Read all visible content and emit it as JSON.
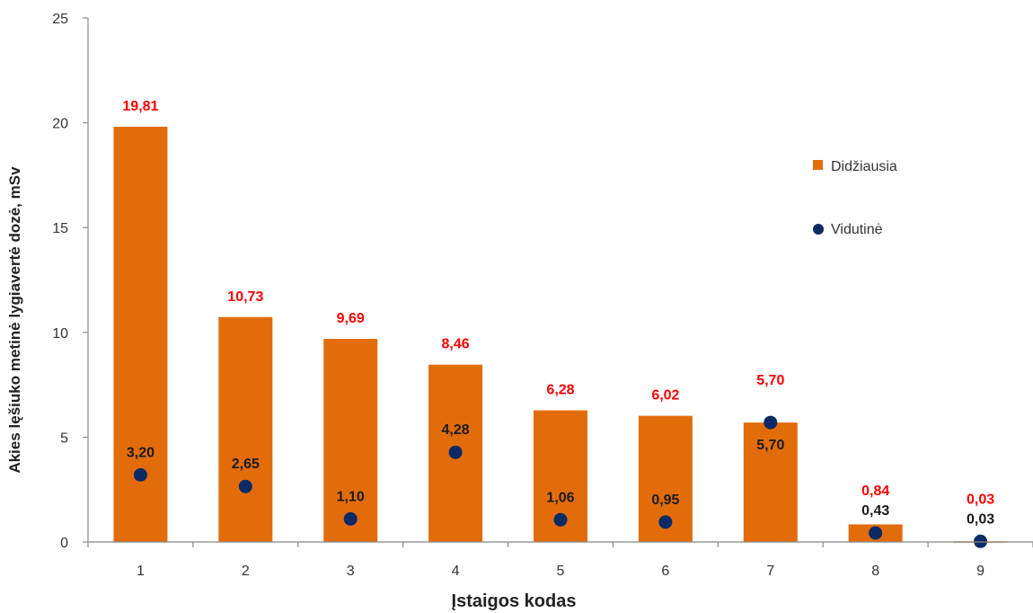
{
  "chart_data": {
    "type": "bar",
    "xlabel": "Įstaigos kodas",
    "ylabel": "Akies lęšiuko metinė lygiavertė dozė, mSv",
    "ylim": [
      0,
      25
    ],
    "yticks": [
      "0",
      "5",
      "10",
      "15",
      "20",
      "25"
    ],
    "categories": [
      "1",
      "2",
      "3",
      "4",
      "5",
      "6",
      "7",
      "8",
      "9"
    ],
    "legend_position": "right",
    "series": [
      {
        "name": "Didžiausia",
        "kind": "bar",
        "color": "#e36c0a",
        "label_color": "#ff0000",
        "values": [
          19.81,
          10.73,
          9.69,
          8.46,
          6.28,
          6.02,
          5.7,
          0.84,
          0.03
        ],
        "labels": [
          "19,81",
          "10,73",
          "9,69",
          "8,46",
          "6,28",
          "6,02",
          "5,70",
          "0,84",
          "0,03"
        ]
      },
      {
        "name": "Vidutinė",
        "kind": "marker",
        "color": "#0b2a66",
        "label_color": "#1a1a1a",
        "values": [
          3.2,
          2.65,
          1.1,
          4.28,
          1.06,
          0.95,
          5.7,
          0.43,
          0.03
        ],
        "labels": [
          "3,20",
          "2,65",
          "1,10",
          "4,28",
          "1,06",
          "0,95",
          "5,70",
          "0,43",
          "0,03"
        ]
      }
    ]
  }
}
